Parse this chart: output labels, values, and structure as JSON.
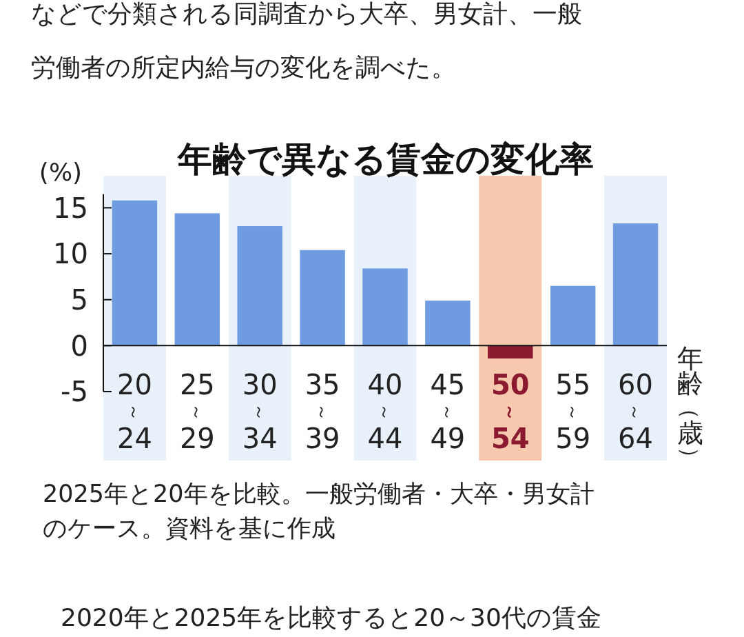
{
  "chart_data": {
    "type": "bar",
    "title": "年齢で異なる賃金の変化率",
    "ylabel": "(%)",
    "xlabel": "年齢（歳）",
    "categories": [
      "20～24",
      "25～29",
      "30～34",
      "35～39",
      "40～44",
      "45～49",
      "50～54",
      "55～59",
      "60～64"
    ],
    "values": [
      15.8,
      14.4,
      13.0,
      10.4,
      8.4,
      4.9,
      -1.4,
      6.5,
      13.3
    ],
    "colors": [
      "#6f9be0",
      "#6f9be0",
      "#6f9be0",
      "#6f9be0",
      "#6f9be0",
      "#6f9be0",
      "#8b1a30",
      "#6f9be0",
      "#6f9be0"
    ],
    "ylim": [
      -5,
      16.5
    ],
    "yticks": [
      -5,
      0,
      5,
      10,
      15
    ],
    "grid": false,
    "bands": [
      {
        "axis": "x",
        "from": "20～24",
        "to": "20～24",
        "color": "#e8f0fa"
      },
      {
        "axis": "x",
        "from": "30～34",
        "to": "30～34",
        "color": "#e8f0fa"
      },
      {
        "axis": "x",
        "from": "40～44",
        "to": "40～44",
        "color": "#e8f0fa"
      },
      {
        "axis": "x",
        "from": "50～54",
        "to": "50～54",
        "color": "#f6c9ae"
      },
      {
        "axis": "x",
        "from": "60～64",
        "to": "60～64",
        "color": "#e8f0fa"
      }
    ],
    "annotations": [
      "などで分類される同調査から大卒、男女計、一般",
      "労働者の所定内給与の変化を調べた。",
      "2025年と20年を比較。一般労働者・大卒・男女計のケース。資料を基に作成",
      "2020年と2025年を比較すると20～30代の賃金"
    ]
  }
}
